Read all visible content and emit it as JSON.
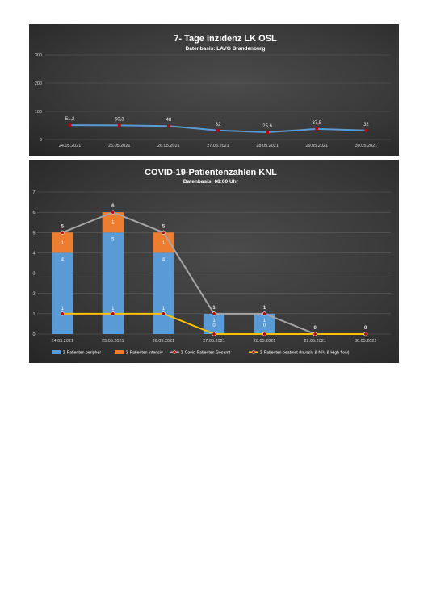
{
  "chart_data": [
    {
      "type": "line",
      "title": "7- Tage Inzidenz LK OSL",
      "subtitle": "Datenbasis: LAVG Brandenburg",
      "categories": [
        "24.05.2021",
        "25.05.2021",
        "26.05.2021",
        "27.05.2021",
        "28.05.2021",
        "29.05.2021",
        "30.05.2021"
      ],
      "yticks": [
        "0",
        "100",
        "200",
        "300"
      ],
      "ylim": [
        0,
        300
      ],
      "grid": true,
      "series": [
        {
          "values": [
            51.2,
            50.3,
            48,
            32,
            25.6,
            37.5,
            32
          ],
          "labels": [
            "51,2",
            "50,3",
            "48",
            "32",
            "25,6",
            "37,5",
            "32"
          ],
          "color": "#5b9bd5",
          "marker_color": "#c00000"
        }
      ]
    },
    {
      "type": "bar",
      "stacked": true,
      "title": "COVID-19-Patientenzahlen KNL",
      "subtitle": "Datenbasis: 08:00 Uhr",
      "categories": [
        "24.05.2021",
        "25.05.2021",
        "26.05.2021",
        "27.05.2021",
        "28.05.2021",
        "29.05.2021",
        "30.05.2021"
      ],
      "yticks": [
        "0",
        "1",
        "2",
        "3",
        "4",
        "5",
        "6",
        "7"
      ],
      "ylim": [
        0,
        7
      ],
      "grid": true,
      "legend_position": "bottom",
      "series": [
        {
          "name": "Σ Patienten peripher",
          "kind": "bar",
          "values": [
            4,
            5,
            4,
            1,
            1,
            0,
            0
          ],
          "color": "#5b9bd5"
        },
        {
          "name": "Σ Patienten intensiv",
          "kind": "bar",
          "values": [
            1,
            1,
            1,
            0,
            0,
            0,
            0
          ],
          "color": "#ed7d31"
        },
        {
          "name": "Σ Covid-Patienten Gesamt",
          "kind": "line",
          "values": [
            5,
            6,
            5,
            1,
            1,
            0,
            0
          ],
          "color": "#a5a5a5",
          "marker_color": "#c00000"
        },
        {
          "name": "Σ Patienten beatmet (Invasiv & NIV & High flow)",
          "kind": "line",
          "values": [
            1,
            1,
            1,
            0,
            0,
            0,
            0
          ],
          "color": "#ffc000",
          "marker_color": "#c00000"
        }
      ]
    }
  ]
}
